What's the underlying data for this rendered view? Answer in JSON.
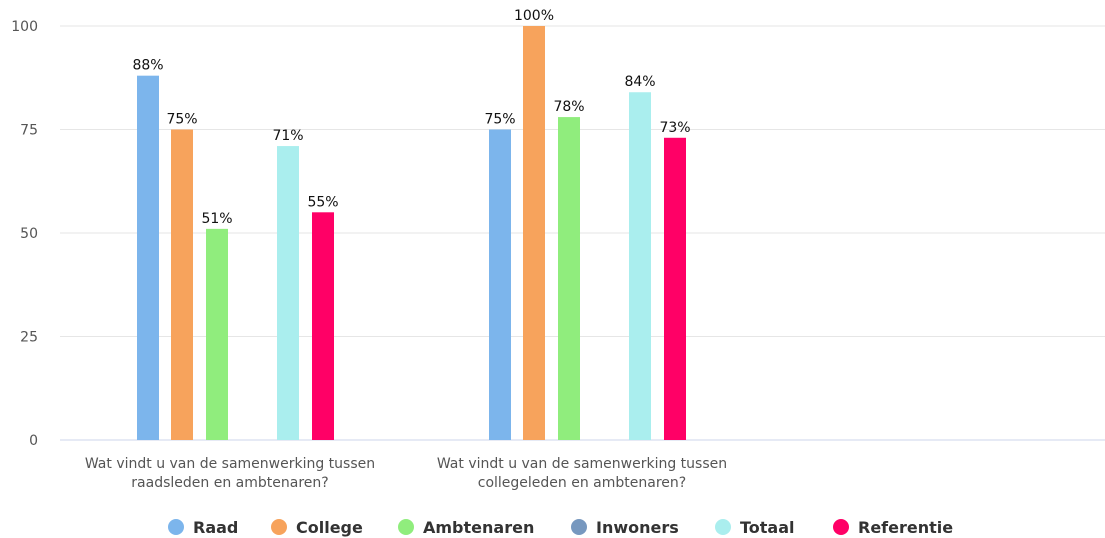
{
  "chart_data": {
    "type": "bar",
    "categories": [
      [
        "Wat vindt u van de samenwerking tussen",
        "raadsleden en ambtenaren?"
      ],
      [
        "Wat vindt u van de samenwerking tussen",
        "collegeleden en ambtenaren?"
      ]
    ],
    "ylim": [
      0,
      100
    ],
    "yticks": [
      0,
      25,
      50,
      75,
      100
    ],
    "grid": true,
    "legend_position": "bottom-center",
    "series": [
      {
        "name": "Raad",
        "color": "#7cb5ec",
        "values": [
          88,
          75
        ],
        "labels": [
          "88%",
          "75%"
        ]
      },
      {
        "name": "College",
        "color": "#f7a35c",
        "values": [
          75,
          100
        ],
        "labels": [
          "75%",
          "100%"
        ]
      },
      {
        "name": "Ambtenaren",
        "color": "#90ed7d",
        "values": [
          51,
          78
        ],
        "labels": [
          "51%",
          "78%"
        ]
      },
      {
        "name": "Inwoners",
        "color": "#7798bf",
        "values": [
          null,
          null
        ],
        "labels": [
          "",
          ""
        ]
      },
      {
        "name": "Totaal",
        "color": "#aaeeee",
        "values": [
          71,
          84
        ],
        "labels": [
          "71%",
          "84%"
        ]
      },
      {
        "name": "Referentie",
        "color": "#ff0066",
        "values": [
          55,
          73
        ],
        "labels": [
          "55%",
          "73%"
        ]
      }
    ]
  }
}
